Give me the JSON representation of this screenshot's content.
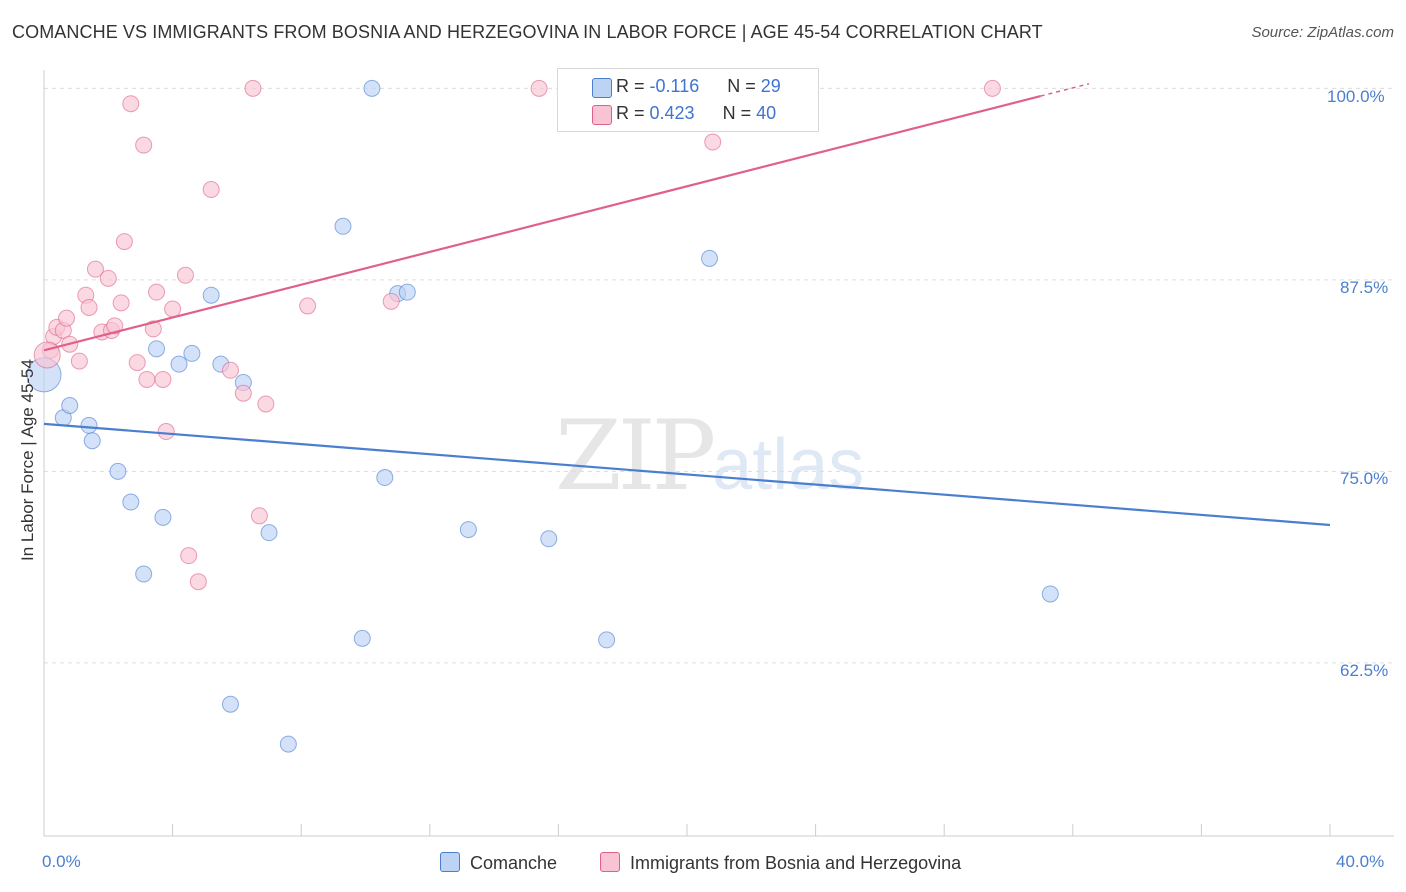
{
  "title": "COMANCHE VS IMMIGRANTS FROM BOSNIA AND HERZEGOVINA IN LABOR FORCE | AGE 45-54 CORRELATION CHART",
  "source": "Source: ZipAtlas.com",
  "watermark": {
    "zip": "ZIP",
    "atlas": "atlas"
  },
  "legend": {
    "comanche": {
      "r_label": "R = ",
      "r_value": "-0.116",
      "n_label": "N = ",
      "n_value": "29"
    },
    "bosnia": {
      "r_label": "R = ",
      "r_value": "0.423",
      "n_label": "N = ",
      "n_value": "40"
    }
  },
  "chart_data": {
    "type": "scatter",
    "title": "COMANCHE VS IMMIGRANTS FROM BOSNIA AND HERZEGOVINA IN LABOR FORCE | AGE 45-54 CORRELATION CHART",
    "xlabel": "",
    "ylabel": "In Labor Force | Age 45-54",
    "xlim": [
      0,
      40
    ],
    "ylim": [
      51.2,
      101.2
    ],
    "x_tick_labels": [
      "0.0%",
      "40.0%"
    ],
    "y_ticks": [
      62.5,
      75.0,
      87.5,
      100.0
    ],
    "y_tick_labels": [
      "62.5%",
      "75.0%",
      "87.5%",
      "100.0%"
    ],
    "grid": true,
    "legend_position": "top-center",
    "colors": {
      "comanche": "#4a7fd0",
      "comanche_fill": "#bcd3f4",
      "bosnia": "#e0608c",
      "bosnia_fill": "#f8c4d4"
    },
    "series": [
      {
        "name": "Comanche",
        "trend": {
          "x": [
            0,
            40
          ],
          "y": [
            78.1,
            71.5
          ]
        },
        "points": [
          [
            0.0,
            81.3
          ],
          [
            0.6,
            78.5
          ],
          [
            0.8,
            79.3
          ],
          [
            1.4,
            78.0
          ],
          [
            1.5,
            77.0
          ],
          [
            2.3,
            75.0
          ],
          [
            2.7,
            73.0
          ],
          [
            3.1,
            68.3
          ],
          [
            3.5,
            83.0
          ],
          [
            3.7,
            72.0
          ],
          [
            4.2,
            82.0
          ],
          [
            4.6,
            82.7
          ],
          [
            5.2,
            86.5
          ],
          [
            5.5,
            82.0
          ],
          [
            5.8,
            59.8
          ],
          [
            6.2,
            80.8
          ],
          [
            7.0,
            71.0
          ],
          [
            7.6,
            57.2
          ],
          [
            9.3,
            91.0
          ],
          [
            9.9,
            64.1
          ],
          [
            10.2,
            100.0
          ],
          [
            10.6,
            74.6
          ],
          [
            11.0,
            86.6
          ],
          [
            11.3,
            86.7
          ],
          [
            13.2,
            71.2
          ],
          [
            15.7,
            70.6
          ],
          [
            17.5,
            64.0
          ],
          [
            20.7,
            88.9
          ],
          [
            31.3,
            67.0
          ]
        ]
      },
      {
        "name": "Immigrants from Bosnia and Herzegovina",
        "trend": {
          "x": [
            0,
            31
          ],
          "y": [
            82.9,
            99.5
          ]
        },
        "trend_dashed": {
          "x": [
            31,
            32.5
          ],
          "y": [
            99.5,
            100.3
          ]
        },
        "points": [
          [
            0.2,
            82.9
          ],
          [
            0.3,
            83.8
          ],
          [
            0.4,
            84.4
          ],
          [
            0.6,
            84.2
          ],
          [
            0.7,
            85.0
          ],
          [
            0.8,
            83.3
          ],
          [
            1.1,
            82.2
          ],
          [
            1.3,
            86.5
          ],
          [
            1.4,
            85.7
          ],
          [
            1.6,
            88.2
          ],
          [
            1.8,
            84.1
          ],
          [
            2.0,
            87.6
          ],
          [
            2.1,
            84.2
          ],
          [
            2.2,
            84.5
          ],
          [
            2.4,
            86.0
          ],
          [
            2.5,
            90.0
          ],
          [
            2.7,
            99.0
          ],
          [
            2.9,
            82.1
          ],
          [
            3.1,
            96.3
          ],
          [
            3.2,
            81.0
          ],
          [
            3.4,
            84.3
          ],
          [
            3.5,
            86.7
          ],
          [
            3.7,
            81.0
          ],
          [
            3.8,
            77.6
          ],
          [
            4.0,
            85.6
          ],
          [
            4.4,
            87.8
          ],
          [
            4.5,
            69.5
          ],
          [
            4.8,
            67.8
          ],
          [
            5.2,
            93.4
          ],
          [
            5.8,
            81.6
          ],
          [
            6.2,
            80.1
          ],
          [
            6.5,
            100.0
          ],
          [
            6.7,
            72.1
          ],
          [
            6.9,
            79.4
          ],
          [
            8.2,
            85.8
          ],
          [
            10.8,
            86.1
          ],
          [
            15.4,
            100.0
          ],
          [
            20.8,
            96.5
          ],
          [
            29.5,
            100.0
          ],
          [
            0.1,
            82.6
          ]
        ]
      }
    ]
  },
  "bottom_legend": {
    "comanche": "Comanche",
    "bosnia": "Immigrants from Bosnia and Herzegovina"
  }
}
